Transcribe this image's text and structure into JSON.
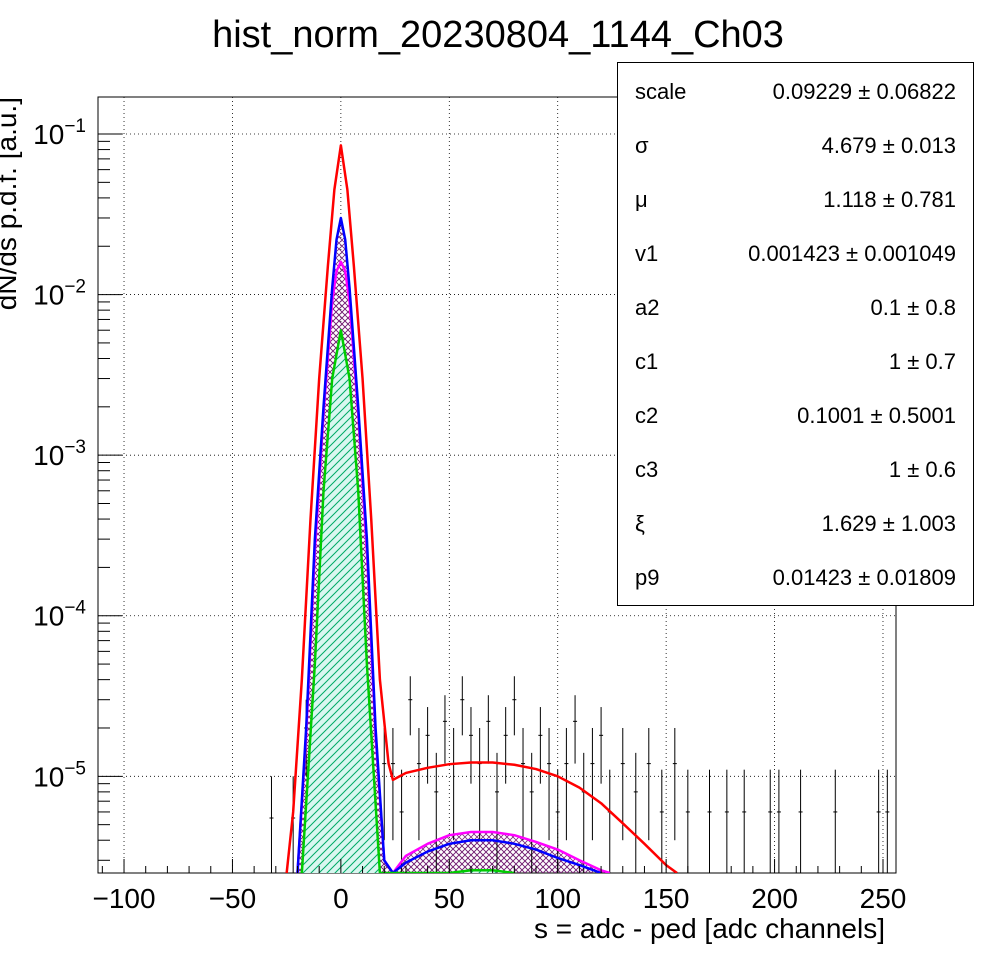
{
  "chart_data": {
    "type": "histogram-fit",
    "title": "hist_norm_20230804_1144_Ch03",
    "xlabel": "s = adc - ped [adc channels]",
    "ylabel": "dN/ds p.d.f. [a.u.]",
    "xlim": [
      -112,
      256
    ],
    "ylim": [
      2.5e-06,
      0.17
    ],
    "y_scale": "log",
    "grid": true,
    "x_ticks": [
      -100,
      -50,
      0,
      50,
      100,
      150,
      200,
      250
    ],
    "y_ticks": [
      {
        "value": 0.1,
        "base": "10",
        "exp": "−1"
      },
      {
        "value": 0.01,
        "base": "10",
        "exp": "−2"
      },
      {
        "value": 0.001,
        "base": "10",
        "exp": "−3"
      },
      {
        "value": 0.0001,
        "base": "10",
        "exp": "−4"
      },
      {
        "value": 1e-05,
        "base": "10",
        "exp": "−5"
      }
    ],
    "series": [
      {
        "color": "#ff0000",
        "x": [
          -25,
          -22,
          -18,
          -14,
          -10,
          -6,
          -3,
          0,
          3,
          6,
          10,
          14,
          18,
          22,
          24,
          30,
          40,
          50,
          60,
          70,
          80,
          90,
          100,
          110,
          120,
          130,
          140,
          150,
          155
        ],
        "y": [
          2.5e-06,
          6e-06,
          4e-05,
          0.0004,
          0.003,
          0.015,
          0.045,
          0.085,
          0.045,
          0.015,
          0.003,
          0.0004,
          4e-05,
          1.2e-05,
          9.5e-06,
          1.05e-05,
          1.13e-05,
          1.19e-05,
          1.22e-05,
          1.22e-05,
          1.18e-05,
          1.11e-05,
          1e-05,
          8.5e-06,
          6.8e-06,
          5.1e-06,
          3.8e-06,
          2.8e-06,
          2.5e-06
        ]
      },
      {
        "color": "#0000ff",
        "x": [
          -20,
          -16,
          -12,
          -8,
          -4,
          -2,
          0,
          2,
          4,
          8,
          12,
          16,
          20,
          24,
          30,
          40,
          50,
          60,
          70,
          80,
          90,
          100,
          110,
          120
        ],
        "y": [
          2.5e-06,
          2e-05,
          0.0003,
          0.002,
          0.011,
          0.022,
          0.03,
          0.022,
          0.011,
          0.002,
          0.0003,
          2e-05,
          3e-06,
          2.5e-06,
          2.9e-06,
          3.4e-06,
          3.8e-06,
          4e-06,
          4e-06,
          3.8e-06,
          3.5e-06,
          3.1e-06,
          2.8e-06,
          2.5e-06
        ]
      },
      {
        "color": "#ff00ff",
        "x": [
          -20,
          -16,
          -12,
          -8,
          -4,
          -2,
          0,
          2,
          4,
          8,
          12,
          16,
          20,
          24,
          30,
          40,
          50,
          60,
          70,
          80,
          90,
          100,
          110,
          120,
          124
        ],
        "y": [
          2.5e-06,
          1.8e-05,
          0.00025,
          0.0018,
          0.009,
          0.014,
          0.016,
          0.014,
          0.009,
          0.0018,
          0.00025,
          1.8e-05,
          3e-06,
          2.5e-06,
          3.2e-06,
          3.8e-06,
          4.3e-06,
          4.5e-06,
          4.5e-06,
          4.3e-06,
          3.9e-06,
          3.5e-06,
          3e-06,
          2.6e-06,
          2.5e-06
        ]
      },
      {
        "color": "#00cc00",
        "x": [
          -18,
          -12,
          -8,
          -4,
          0,
          4,
          8,
          12,
          18,
          20,
          40,
          50,
          60,
          70,
          80
        ],
        "y": [
          2.5e-06,
          5e-05,
          0.0006,
          0.003,
          0.006,
          0.003,
          0.0006,
          5e-05,
          2.5e-06,
          2.5e-06,
          2.5e-06,
          2.5e-06,
          2.6e-06,
          2.6e-06,
          2.5e-06
        ]
      }
    ],
    "data_points": [
      {
        "x": -32,
        "y": 5.5e-06,
        "e": 4.5e-06
      },
      {
        "x": -22,
        "y": 5.5e-06,
        "e": 4.5e-06
      },
      {
        "x": -16,
        "y": 2e-05,
        "e": 1e-05
      },
      {
        "x": 20,
        "y": 1.2e-05,
        "e": 8e-06
      },
      {
        "x": 24,
        "y": 1.2e-05,
        "e": 8e-06
      },
      {
        "x": 28,
        "y": 6e-06,
        "e": 5e-06
      },
      {
        "x": 32,
        "y": 3e-05,
        "e": 1.2e-05
      },
      {
        "x": 36,
        "y": 1.2e-05,
        "e": 8e-06
      },
      {
        "x": 40,
        "y": 1.8e-05,
        "e": 9e-06
      },
      {
        "x": 44,
        "y": 8e-06,
        "e": 6e-06
      },
      {
        "x": 48,
        "y": 2.2e-05,
        "e": 1e-05
      },
      {
        "x": 52,
        "y": 1.2e-05,
        "e": 8e-06
      },
      {
        "x": 56,
        "y": 3e-05,
        "e": 1.2e-05
      },
      {
        "x": 60,
        "y": 1.8e-05,
        "e": 9e-06
      },
      {
        "x": 64,
        "y": 1.2e-05,
        "e": 8e-06
      },
      {
        "x": 68,
        "y": 2.2e-05,
        "e": 1e-05
      },
      {
        "x": 72,
        "y": 8e-06,
        "e": 6e-06
      },
      {
        "x": 76,
        "y": 1.8e-05,
        "e": 9e-06
      },
      {
        "x": 80,
        "y": 3e-05,
        "e": 1.2e-05
      },
      {
        "x": 84,
        "y": 1.2e-05,
        "e": 8e-06
      },
      {
        "x": 88,
        "y": 8e-06,
        "e": 6e-06
      },
      {
        "x": 92,
        "y": 1.8e-05,
        "e": 9e-06
      },
      {
        "x": 96,
        "y": 1.2e-05,
        "e": 8e-06
      },
      {
        "x": 100,
        "y": 6e-06,
        "e": 5e-06
      },
      {
        "x": 104,
        "y": 1.2e-05,
        "e": 8e-06
      },
      {
        "x": 108,
        "y": 2.2e-05,
        "e": 1e-05
      },
      {
        "x": 112,
        "y": 8e-06,
        "e": 6e-06
      },
      {
        "x": 116,
        "y": 1.2e-05,
        "e": 8e-06
      },
      {
        "x": 120,
        "y": 1.8e-05,
        "e": 9e-06
      },
      {
        "x": 124,
        "y": 6e-06,
        "e": 5e-06
      },
      {
        "x": 130,
        "y": 1.2e-05,
        "e": 8e-06
      },
      {
        "x": 136,
        "y": 8e-06,
        "e": 6e-06
      },
      {
        "x": 142,
        "y": 1.2e-05,
        "e": 8e-06
      },
      {
        "x": 148,
        "y": 6e-06,
        "e": 5e-06
      },
      {
        "x": 154,
        "y": 1.2e-05,
        "e": 8e-06
      },
      {
        "x": 160,
        "y": 6e-06,
        "e": 5e-06
      },
      {
        "x": 170,
        "y": 6e-06,
        "e": 5e-06
      },
      {
        "x": 178,
        "y": 6e-06,
        "e": 5e-06
      },
      {
        "x": 186,
        "y": 6e-06,
        "e": 5e-06
      },
      {
        "x": 198,
        "y": 6e-06,
        "e": 5e-06
      },
      {
        "x": 202,
        "y": 6e-06,
        "e": 5e-06
      },
      {
        "x": 212,
        "y": 6e-06,
        "e": 5e-06
      },
      {
        "x": 228,
        "y": 6e-06,
        "e": 5e-06
      },
      {
        "x": 248,
        "y": 6e-06,
        "e": 5e-06
      },
      {
        "x": 252,
        "y": 6e-06,
        "e": 5e-06
      }
    ]
  },
  "stats": [
    {
      "name": "scale",
      "value": "0.09229 ± 0.06822"
    },
    {
      "name": "σ",
      "value": "4.679 ± 0.013"
    },
    {
      "name": "μ",
      "value": "1.118 ± 0.781"
    },
    {
      "name": "v1",
      "value": "0.001423 ± 0.001049"
    },
    {
      "name": "a2",
      "value": "0.1 ± 0.8"
    },
    {
      "name": "c1",
      "value": "1 ± 0.7"
    },
    {
      "name": "c2",
      "value": "0.1001 ± 0.5001"
    },
    {
      "name": "c3",
      "value": "1 ± 0.6"
    },
    {
      "name": "ξ",
      "value": "1.629 ± 1.003"
    },
    {
      "name": "p9",
      "value": "0.01423 ± 0.01809"
    }
  ]
}
